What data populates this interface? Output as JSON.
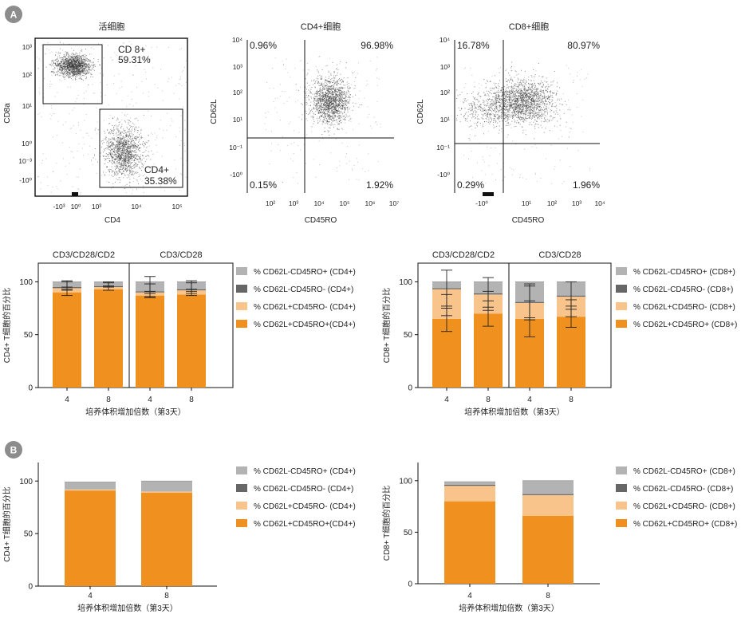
{
  "panels": {
    "A": "A",
    "B": "B"
  },
  "colors": {
    "orange": "#f0911f",
    "light_orange": "#f8c48c",
    "dark_gray": "#666666",
    "light_gray": "#b3b3b3",
    "badge": "#8c8c8c"
  },
  "chart_data": [
    {
      "type": "scatter",
      "id": "flow1",
      "title": "活细胞",
      "xlabel": "CD4",
      "ylabel": "CD8a",
      "x_ticks": [
        "-10³",
        "10⁰",
        "10³",
        "10⁴",
        "10⁵"
      ],
      "y_ticks": [
        "10³",
        "10²",
        "10¹",
        "10⁰",
        "10⁻³",
        "-10⁰"
      ],
      "gates": [
        {
          "name": "CD 8+",
          "percent": "59.31%"
        },
        {
          "name": "CD4+",
          "percent": "35.38%"
        }
      ]
    },
    {
      "type": "scatter",
      "id": "flow2",
      "title": "CD4+细胞",
      "xlabel": "CD45RO",
      "ylabel": "CD62L",
      "x_ticks": [
        "10²",
        "10³",
        "10⁴",
        "10⁵",
        "10⁶",
        "10⁷"
      ],
      "y_ticks": [
        "10⁴",
        "10³",
        "10²",
        "10¹",
        "10⁻¹",
        "-10⁰"
      ],
      "quadrants": {
        "top_left": "0.96%",
        "top_right": "96.98%",
        "bottom_left": "0.15%",
        "bottom_right": "1.92%"
      }
    },
    {
      "type": "scatter",
      "id": "flow3",
      "title": "CD8+细胞",
      "xlabel": "CD45RO",
      "ylabel": "CD62L",
      "x_ticks": [
        "-10⁰",
        "10¹",
        "10²",
        "10³",
        "10⁴"
      ],
      "y_ticks": [
        "10⁴",
        "10³",
        "10²",
        "10¹",
        "10⁻¹",
        "-10⁰"
      ],
      "quadrants": {
        "top_left": "16.78%",
        "top_right": "80.97%",
        "bottom_left": "0.29%",
        "bottom_right": "1.96%"
      }
    },
    {
      "type": "bar",
      "stacked": true,
      "id": "barA_cd4",
      "ylabel": "CD4+ T细胞的百分比",
      "xlabel": "培养体积增加倍数（第3天）",
      "categories": [
        "4",
        "8",
        "4",
        "8"
      ],
      "groups": [
        {
          "label": "CD3/CD28/CD2"
        },
        {
          "label": "CD3/CD28"
        }
      ],
      "ylim": [
        0,
        100
      ],
      "y_ticks": [
        "0",
        "50",
        "100"
      ],
      "legend": [
        "% CD62L-CD45RO+ (CD4+)",
        "% CD62L-CD45RO- (CD4+)",
        "% CD62L+CD45RO- (CD4+)",
        "% CD62L+CD45RO+(CD4+)"
      ],
      "series": [
        {
          "name": "% CD62L+CD45RO+(CD4+)",
          "values": [
            90,
            93,
            87,
            88
          ]
        },
        {
          "name": "% CD62L+CD45RO- (CD4+)",
          "values": [
            4,
            2,
            3,
            4
          ]
        },
        {
          "name": "% CD62L-CD45RO- (CD4+)",
          "values": [
            1,
            1,
            1,
            1
          ]
        },
        {
          "name": "% CD62L-CD45RO+ (CD4+)",
          "values": [
            5,
            4,
            9,
            7
          ]
        }
      ],
      "error_at": [
        [
          90,
          96,
          98
        ],
        [
          94,
          97,
          98
        ],
        [
          88,
          92,
          97
        ],
        [
          90,
          94,
          96
        ]
      ]
    },
    {
      "type": "bar",
      "stacked": true,
      "id": "barA_cd8",
      "ylabel": "CD8+ T细胞的百分比",
      "xlabel": "培养体积增加倍数（第3天）",
      "categories": [
        "4",
        "8",
        "4",
        "8"
      ],
      "groups": [
        {
          "label": "CD3/CD28/CD2"
        },
        {
          "label": "CD3/CD28"
        }
      ],
      "ylim": [
        0,
        100
      ],
      "y_ticks": [
        "0",
        "50",
        "100"
      ],
      "legend": [
        "% CD62L-CD45RO+ (CD8+)",
        "% CD62L-CD45RO- (CD8+)",
        "% CD62L+CD45RO- (CD8+)",
        "% CD62L+CD45RO+ (CD8+)"
      ],
      "series": [
        {
          "name": "% CD62L+CD45RO+ (CD8+)",
          "values": [
            65,
            70,
            65,
            67
          ]
        },
        {
          "name": "% CD62L+CD45RO- (CD8+)",
          "values": [
            28,
            18,
            15,
            19
          ]
        },
        {
          "name": "% CD62L-CD45RO- (CD8+)",
          "values": [
            1,
            1,
            1,
            1
          ]
        },
        {
          "name": "% CD62L-CD45RO+ (CD8+)",
          "values": [
            6,
            11,
            19,
            13
          ]
        }
      ],
      "error_at": [
        [
          65,
          78,
          93
        ],
        [
          70,
          82,
          90
        ],
        [
          65,
          80,
          82
        ],
        [
          67,
          75,
          87
        ]
      ]
    },
    {
      "type": "bar",
      "stacked": true,
      "id": "barB_cd4",
      "ylabel": "CD4+ T细胞的百分比",
      "xlabel": "培养体积增加倍数（第3天）",
      "categories": [
        "4",
        "8"
      ],
      "ylim": [
        0,
        100
      ],
      "y_ticks": [
        "0",
        "50",
        "100"
      ],
      "legend": [
        "% CD62L-CD45RO+ (CD4+)",
        "% CD62L-CD45RO- (CD4+)",
        "% CD62L+CD45RO- (CD4+)",
        "% CD62L+CD45RO+(CD4+)"
      ],
      "series": [
        {
          "name": "% CD62L+CD45RO+(CD4+)",
          "values": [
            91,
            89
          ]
        },
        {
          "name": "% CD62L+CD45RO- (CD4+)",
          "values": [
            1,
            1
          ]
        },
        {
          "name": "% CD62L-CD45RO- (CD4+)",
          "values": [
            0,
            0
          ]
        },
        {
          "name": "% CD62L-CD45RO+ (CD4+)",
          "values": [
            7,
            10
          ]
        }
      ]
    },
    {
      "type": "bar",
      "stacked": true,
      "id": "barB_cd8",
      "ylabel": "CD8+ T细胞的百分比",
      "xlabel": "培养体积增加倍数（第3天）",
      "categories": [
        "4",
        "8"
      ],
      "ylim": [
        0,
        100
      ],
      "y_ticks": [
        "0",
        "50",
        "100"
      ],
      "legend": [
        "% CD62L-CD45RO+ (CD8+)",
        "% CD62L-CD45RO- (CD8+)",
        "% CD62L+CD45RO- (CD8+)",
        "% CD62L+CD45RO+ (CD8+)"
      ],
      "series": [
        {
          "name": "% CD62L+CD45RO+ (CD8+)",
          "values": [
            80,
            66
          ]
        },
        {
          "name": "% CD62L+CD45RO- (CD8+)",
          "values": [
            15,
            20
          ]
        },
        {
          "name": "% CD62L-CD45RO- (CD8+)",
          "values": [
            1,
            1
          ]
        },
        {
          "name": "% CD62L-CD45RO+ (CD8+)",
          "values": [
            3,
            13
          ]
        }
      ]
    }
  ]
}
